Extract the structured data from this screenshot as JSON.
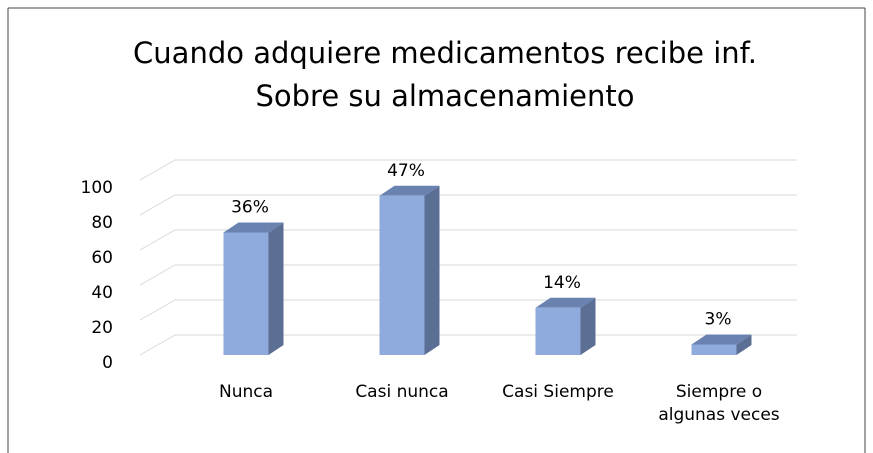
{
  "chart_data": {
    "type": "bar3d",
    "title": "Cuando adquiere medicamentos recibe inf. Sobre su almacenamiento",
    "categories": [
      "Nunca",
      "Casi nunca",
      "Casi Siempre",
      "Siempre o algunas veces"
    ],
    "values": [
      70,
      91,
      27,
      6
    ],
    "data_labels": [
      "36%",
      "47%",
      "14%",
      "3%"
    ],
    "color": "#8faadc",
    "ylim": [
      0,
      100
    ],
    "yticks": [
      0,
      20,
      40,
      60,
      80,
      100
    ],
    "grid": true
  }
}
